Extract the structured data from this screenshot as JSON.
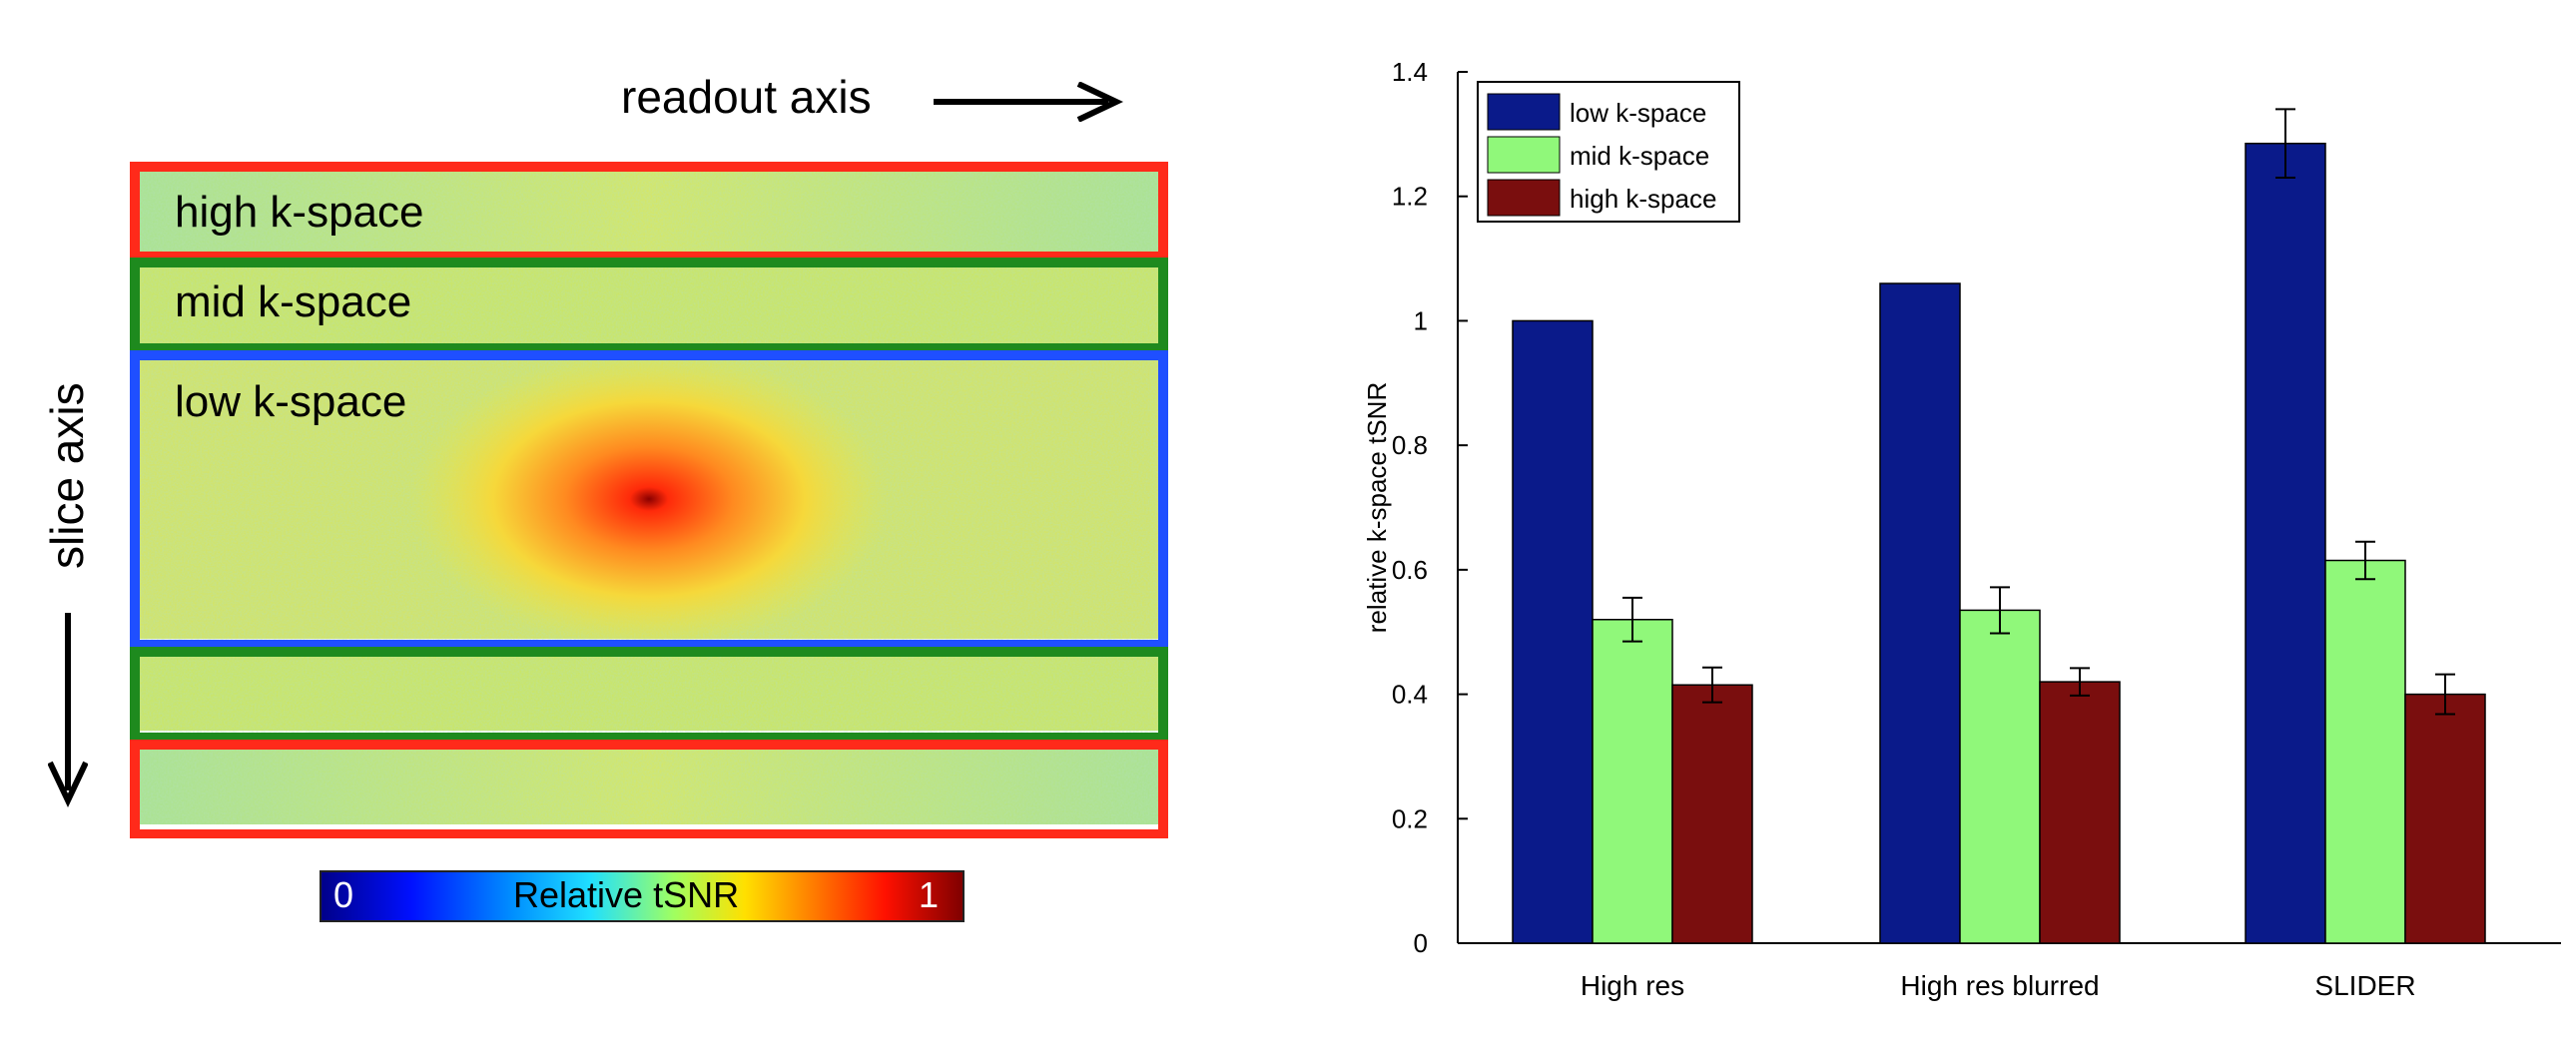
{
  "left_panel": {
    "readout_axis_label": "readout axis",
    "slice_axis_label": "slice axis",
    "bands": [
      {
        "label": "high k-space",
        "color": "#ff2a1a"
      },
      {
        "label": "mid k-space",
        "color": "#1e8a1e"
      },
      {
        "label": "low k-space",
        "color": "#1f4fff"
      }
    ],
    "colorbar": {
      "title": "Relative tSNR",
      "min": "0",
      "max": "1"
    }
  },
  "chart_data": {
    "type": "bar",
    "categories": [
      "High res",
      "High res blurred",
      "SLIDER"
    ],
    "series": [
      {
        "name": "low k-space",
        "color": "#0a1a8a",
        "values": [
          1.0,
          1.06,
          1.285
        ],
        "errors": [
          0.0,
          0.0,
          0.055
        ]
      },
      {
        "name": "mid k-space",
        "color": "#90f87a",
        "values": [
          0.52,
          0.535,
          0.615
        ],
        "errors": [
          0.035,
          0.037,
          0.03
        ]
      },
      {
        "name": "high k-space",
        "color": "#7a0e0e",
        "values": [
          0.415,
          0.42,
          0.4
        ],
        "errors": [
          0.028,
          0.022,
          0.032
        ]
      }
    ],
    "ylabel": "relative k-space tSNR",
    "ylim": [
      0,
      1.4
    ],
    "yticks": [
      "0",
      "0.2",
      "0.4",
      "0.6",
      "0.8",
      "1",
      "1.2",
      "1.4"
    ],
    "legend_position": "top-left",
    "grid": false
  }
}
